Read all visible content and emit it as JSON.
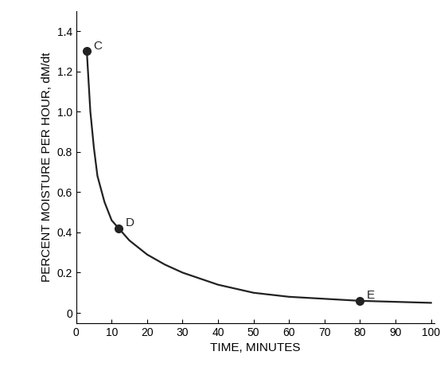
{
  "chart_data": {
    "type": "line",
    "x_label": "TIME, MINUTES",
    "y_label": "PERCENT MOISTURE PER HOUR, dM/dt",
    "x": [
      3,
      4,
      5,
      6,
      8,
      10,
      12,
      15,
      20,
      25,
      30,
      40,
      50,
      60,
      70,
      80,
      90,
      100
    ],
    "values": [
      1.3,
      1.0,
      0.82,
      0.68,
      0.55,
      0.46,
      0.42,
      0.36,
      0.29,
      0.24,
      0.2,
      0.14,
      0.1,
      0.08,
      0.07,
      0.06,
      0.055,
      0.05
    ],
    "color": "#222222",
    "points": [
      {
        "label": "C",
        "x": 3,
        "y": 1.3
      },
      {
        "label": "D",
        "x": 12,
        "y": 0.42
      },
      {
        "label": "E",
        "x": 80,
        "y": 0.06
      }
    ],
    "xlim": [
      0,
      101
    ],
    "ylim": [
      -0.05,
      1.5
    ],
    "xticks": [
      0,
      10,
      20,
      30,
      40,
      50,
      60,
      70,
      80,
      90,
      100
    ],
    "yticks": [
      0,
      0.2,
      0.4,
      0.6,
      0.8,
      {
        "value": 1.0,
        "label": "1.0"
      },
      1.2,
      1.4
    ],
    "grid": false
  }
}
